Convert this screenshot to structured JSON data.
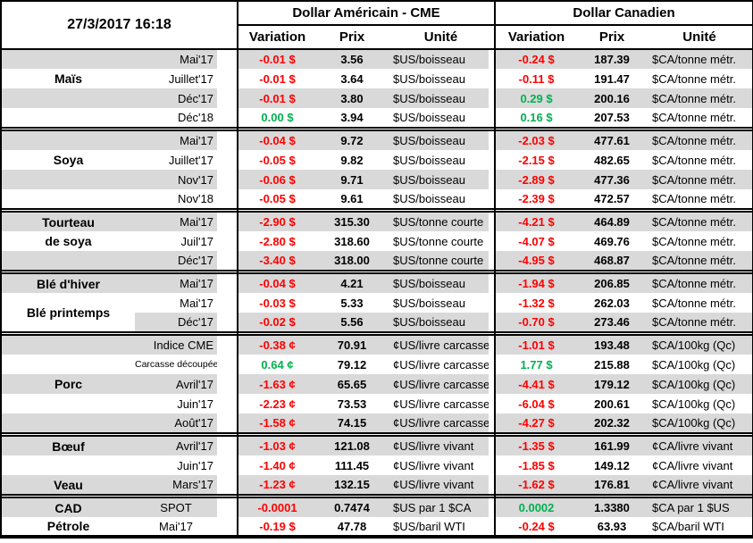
{
  "header": {
    "timestamp": "27/3/2017 16:18",
    "us_block_title": "Dollar Américain - CME",
    "ca_block_title": "Dollar Canadien",
    "col_variation": "Variation",
    "col_prix": "Prix",
    "col_unite": "Unité"
  },
  "colors": {
    "negative": "#FF0000",
    "positive": "#00B050",
    "stripe": "#D9D9D9",
    "border": "#000000"
  },
  "sections": [
    {
      "id": "mais",
      "rows": [
        {
          "name": "",
          "month": "Mai'17",
          "shaded": true,
          "us": {
            "var": "-0.01 $",
            "dir": "neg",
            "prix": "3.56",
            "unit": "$US/boisseau"
          },
          "ca": {
            "var": "-0.24 $",
            "dir": "neg",
            "prix": "187.39",
            "unit": "$CA/tonne métr."
          }
        },
        {
          "name": "Maïs",
          "month": "Juillet'17",
          "shaded": false,
          "us": {
            "var": "-0.01 $",
            "dir": "neg",
            "prix": "3.64",
            "unit": "$US/boisseau"
          },
          "ca": {
            "var": "-0.11 $",
            "dir": "neg",
            "prix": "191.47",
            "unit": "$CA/tonne métr."
          }
        },
        {
          "name": "",
          "month": "Déc'17",
          "shaded": true,
          "us": {
            "var": "-0.01 $",
            "dir": "neg",
            "prix": "3.80",
            "unit": "$US/boisseau"
          },
          "ca": {
            "var": "0.29 $",
            "dir": "pos",
            "prix": "200.16",
            "unit": "$CA/tonne métr."
          }
        },
        {
          "name": "",
          "month": "Déc'18",
          "shaded": false,
          "us": {
            "var": "0.00 $",
            "dir": "pos",
            "prix": "3.94",
            "unit": "$US/boisseau"
          },
          "ca": {
            "var": "0.16 $",
            "dir": "pos",
            "prix": "207.53",
            "unit": "$CA/tonne métr."
          }
        }
      ]
    },
    {
      "id": "soya",
      "rows": [
        {
          "name": "",
          "month": "Mai'17",
          "shaded": true,
          "us": {
            "var": "-0.04 $",
            "dir": "neg",
            "prix": "9.72",
            "unit": "$US/boisseau"
          },
          "ca": {
            "var": "-2.03 $",
            "dir": "neg",
            "prix": "477.61",
            "unit": "$CA/tonne métr."
          }
        },
        {
          "name": "Soya",
          "month": "Juillet'17",
          "shaded": false,
          "us": {
            "var": "-0.05 $",
            "dir": "neg",
            "prix": "9.82",
            "unit": "$US/boisseau"
          },
          "ca": {
            "var": "-2.15 $",
            "dir": "neg",
            "prix": "482.65",
            "unit": "$CA/tonne métr."
          }
        },
        {
          "name": "",
          "month": "Nov'17",
          "shaded": true,
          "us": {
            "var": "-0.06 $",
            "dir": "neg",
            "prix": "9.71",
            "unit": "$US/boisseau"
          },
          "ca": {
            "var": "-2.89 $",
            "dir": "neg",
            "prix": "477.36",
            "unit": "$CA/tonne métr."
          }
        },
        {
          "name": "",
          "month": "Nov'18",
          "shaded": false,
          "us": {
            "var": "-0.05 $",
            "dir": "neg",
            "prix": "9.61",
            "unit": "$US/boisseau"
          },
          "ca": {
            "var": "-2.39 $",
            "dir": "neg",
            "prix": "472.57",
            "unit": "$CA/tonne métr."
          }
        }
      ]
    },
    {
      "id": "tourteau-de-soya",
      "rows": [
        {
          "name": "Tourteau",
          "month": "Mai'17",
          "shaded": true,
          "us": {
            "var": "-2.90 $",
            "dir": "neg",
            "prix": "315.30",
            "unit": "$US/tonne courte"
          },
          "ca": {
            "var": "-4.21 $",
            "dir": "neg",
            "prix": "464.89",
            "unit": "$CA/tonne métr."
          }
        },
        {
          "name": "de soya",
          "month": "Juil'17",
          "shaded": false,
          "us": {
            "var": "-2.80 $",
            "dir": "neg",
            "prix": "318.60",
            "unit": "$US/tonne courte"
          },
          "ca": {
            "var": "-4.07 $",
            "dir": "neg",
            "prix": "469.76",
            "unit": "$CA/tonne métr."
          }
        },
        {
          "name": "",
          "month": "Déc'17",
          "shaded": true,
          "us": {
            "var": "-3.40 $",
            "dir": "neg",
            "prix": "318.00",
            "unit": "$US/tonne courte"
          },
          "ca": {
            "var": "-4.95 $",
            "dir": "neg",
            "prix": "468.87",
            "unit": "$CA/tonne métr."
          }
        }
      ]
    },
    {
      "id": "ble",
      "rows": [
        {
          "name": "Blé d'hiver",
          "month": "Mai'17",
          "shaded": true,
          "us": {
            "var": "-0.04 $",
            "dir": "neg",
            "prix": "4.21",
            "unit": "$US/boisseau"
          },
          "ca": {
            "var": "-1.94 $",
            "dir": "neg",
            "prix": "206.85",
            "unit": "$CA/tonne métr."
          }
        },
        {
          "name": "Blé printemps",
          "name_rowspan": 2,
          "name_white": true,
          "month": "Mai'17",
          "shaded": false,
          "us": {
            "var": "-0.03 $",
            "dir": "neg",
            "prix": "5.33",
            "unit": "$US/boisseau"
          },
          "ca": {
            "var": "-1.32 $",
            "dir": "neg",
            "prix": "262.03",
            "unit": "$CA/tonne métr."
          }
        },
        {
          "name_skip": true,
          "month": "Déc'17",
          "shaded": true,
          "us": {
            "var": "-0.02 $",
            "dir": "neg",
            "prix": "5.56",
            "unit": "$US/boisseau"
          },
          "ca": {
            "var": "-0.70 $",
            "dir": "neg",
            "prix": "273.46",
            "unit": "$CA/tonne métr."
          }
        }
      ]
    },
    {
      "id": "porc",
      "rows": [
        {
          "name": "",
          "month": "Indice CME",
          "shaded": true,
          "us": {
            "var": "-0.38 ¢",
            "dir": "neg",
            "prix": "70.91",
            "unit": "¢US/livre carcasse"
          },
          "ca": {
            "var": "-1.01 $",
            "dir": "neg",
            "prix": "193.48",
            "unit": "$CA/100kg (Qc)"
          }
        },
        {
          "name": "",
          "month": "Carcasse découpée",
          "month_small": true,
          "shaded": false,
          "us": {
            "var": "0.64 ¢",
            "dir": "pos",
            "prix": "79.12",
            "unit": "¢US/livre carcasse"
          },
          "ca": {
            "var": "1.77 $",
            "dir": "pos",
            "prix": "215.88",
            "unit": "$CA/100kg (Qc)"
          }
        },
        {
          "name": "Porc",
          "month": "Avril'17",
          "shaded": true,
          "us": {
            "var": "-1.63 ¢",
            "dir": "neg",
            "prix": "65.65",
            "unit": "¢US/livre carcasse"
          },
          "ca": {
            "var": "-4.41 $",
            "dir": "neg",
            "prix": "179.12",
            "unit": "$CA/100kg (Qc)"
          }
        },
        {
          "name": "",
          "month": "Juin'17",
          "shaded": false,
          "us": {
            "var": "-2.23 ¢",
            "dir": "neg",
            "prix": "73.53",
            "unit": "¢US/livre carcasse"
          },
          "ca": {
            "var": "-6.04 $",
            "dir": "neg",
            "prix": "200.61",
            "unit": "$CA/100kg (Qc)"
          }
        },
        {
          "name": "",
          "month": "Août'17",
          "shaded": true,
          "us": {
            "var": "-1.58 ¢",
            "dir": "neg",
            "prix": "74.15",
            "unit": "¢US/livre carcasse"
          },
          "ca": {
            "var": "-4.27 $",
            "dir": "neg",
            "prix": "202.32",
            "unit": "$CA/100kg (Qc)"
          }
        }
      ]
    },
    {
      "id": "boeuf-veau",
      "rows": [
        {
          "name": "Bœuf",
          "month": "Avril'17",
          "shaded": true,
          "us": {
            "var": "-1.03 ¢",
            "dir": "neg",
            "prix": "121.08",
            "unit": "¢US/livre vivant"
          },
          "ca": {
            "var": "-1.35 $",
            "dir": "neg",
            "prix": "161.99",
            "unit": "¢CA/livre vivant"
          }
        },
        {
          "name": "",
          "month": "Juin'17",
          "shaded": false,
          "us": {
            "var": "-1.40 ¢",
            "dir": "neg",
            "prix": "111.45",
            "unit": "¢US/livre vivant"
          },
          "ca": {
            "var": "-1.85 $",
            "dir": "neg",
            "prix": "149.12",
            "unit": "¢CA/livre vivant"
          }
        },
        {
          "name": "Veau",
          "month": "Mars'17",
          "shaded": true,
          "us": {
            "var": "-1.23 ¢",
            "dir": "neg",
            "prix": "132.15",
            "unit": "¢US/livre vivant"
          },
          "ca": {
            "var": "-1.62 $",
            "dir": "neg",
            "prix": "176.81",
            "unit": "¢CA/livre vivant"
          }
        }
      ]
    },
    {
      "id": "cad-petrole",
      "rows": [
        {
          "name": "CAD",
          "month": "SPOT",
          "month_center": true,
          "shaded": true,
          "us": {
            "var": "-0.0001",
            "dir": "neg",
            "prix": "0.7474",
            "unit": "$US par 1 $CA"
          },
          "ca": {
            "var": "0.0002",
            "dir": "pos",
            "prix": "1.3380",
            "unit": "$CA par 1 $US"
          }
        },
        {
          "name": "Pétrole",
          "month": "Mai'17",
          "month_center": true,
          "shaded": false,
          "us": {
            "var": "-0.19 $",
            "dir": "neg",
            "prix": "47.78",
            "unit": "$US/baril WTI"
          },
          "ca": {
            "var": "-0.24 $",
            "dir": "neg",
            "prix": "63.93",
            "unit": "$CA/baril WTI"
          }
        }
      ]
    }
  ]
}
